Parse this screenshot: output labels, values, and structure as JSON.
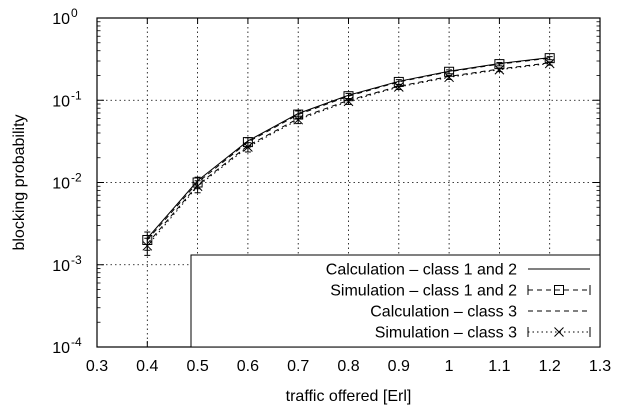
{
  "chart_data": {
    "type": "line",
    "xlabel": "traffic offered [Erl]",
    "ylabel": "blocking probability",
    "xlim": [
      0.3,
      1.3
    ],
    "ylim": [
      0.0001,
      1
    ],
    "yscale": "log",
    "grid": true,
    "legend_position": "bottom-right",
    "x_ticks": [
      0.3,
      0.4,
      0.5,
      0.6,
      0.7,
      0.8,
      0.9,
      1.0,
      1.1,
      1.2,
      1.3
    ],
    "x_tick_labels": [
      "0.3",
      "0.4",
      "0.5",
      "0.6",
      "0.7",
      "0.8",
      "0.9",
      "1",
      "1.1",
      "1.2",
      "1.3"
    ],
    "y_ticks": [
      0.0001,
      0.001,
      0.01,
      0.1,
      1
    ],
    "y_tick_labels": [
      {
        "base": "10",
        "exp": "-4"
      },
      {
        "base": "10",
        "exp": "-3"
      },
      {
        "base": "10",
        "exp": "-2"
      },
      {
        "base": "10",
        "exp": "-1"
      },
      {
        "base": "10",
        "exp": "0"
      }
    ],
    "x": [
      0.4,
      0.5,
      0.6,
      0.7,
      0.8,
      0.9,
      1.0,
      1.1,
      1.2
    ],
    "series": [
      {
        "name": "Calculation – class 1 and 2",
        "style": "solid",
        "marker": "none",
        "values": [
          0.0021,
          0.0105,
          0.032,
          0.069,
          0.115,
          0.17,
          0.225,
          0.28,
          0.33
        ]
      },
      {
        "name": "Simulation – class 1 and 2",
        "style": "dashed",
        "marker": "square",
        "values": [
          0.002,
          0.01,
          0.031,
          0.067,
          0.112,
          0.167,
          0.222,
          0.275,
          0.325
        ],
        "error": [
          0.0005,
          0.0016,
          0.004,
          0.007,
          0.009,
          0.011,
          0.012,
          0.013,
          0.014
        ]
      },
      {
        "name": "Calculation – class 3",
        "style": "dashed",
        "marker": "none",
        "values": [
          0.0018,
          0.0093,
          0.028,
          0.06,
          0.1,
          0.148,
          0.195,
          0.24,
          0.285
        ]
      },
      {
        "name": "Simulation – class 3",
        "style": "dotted",
        "marker": "x",
        "values": [
          0.0017,
          0.009,
          0.027,
          0.058,
          0.097,
          0.145,
          0.19,
          0.235,
          0.28
        ],
        "error": [
          0.0004,
          0.0015,
          0.0035,
          0.006,
          0.008,
          0.01,
          0.011,
          0.012,
          0.013
        ]
      }
    ]
  }
}
